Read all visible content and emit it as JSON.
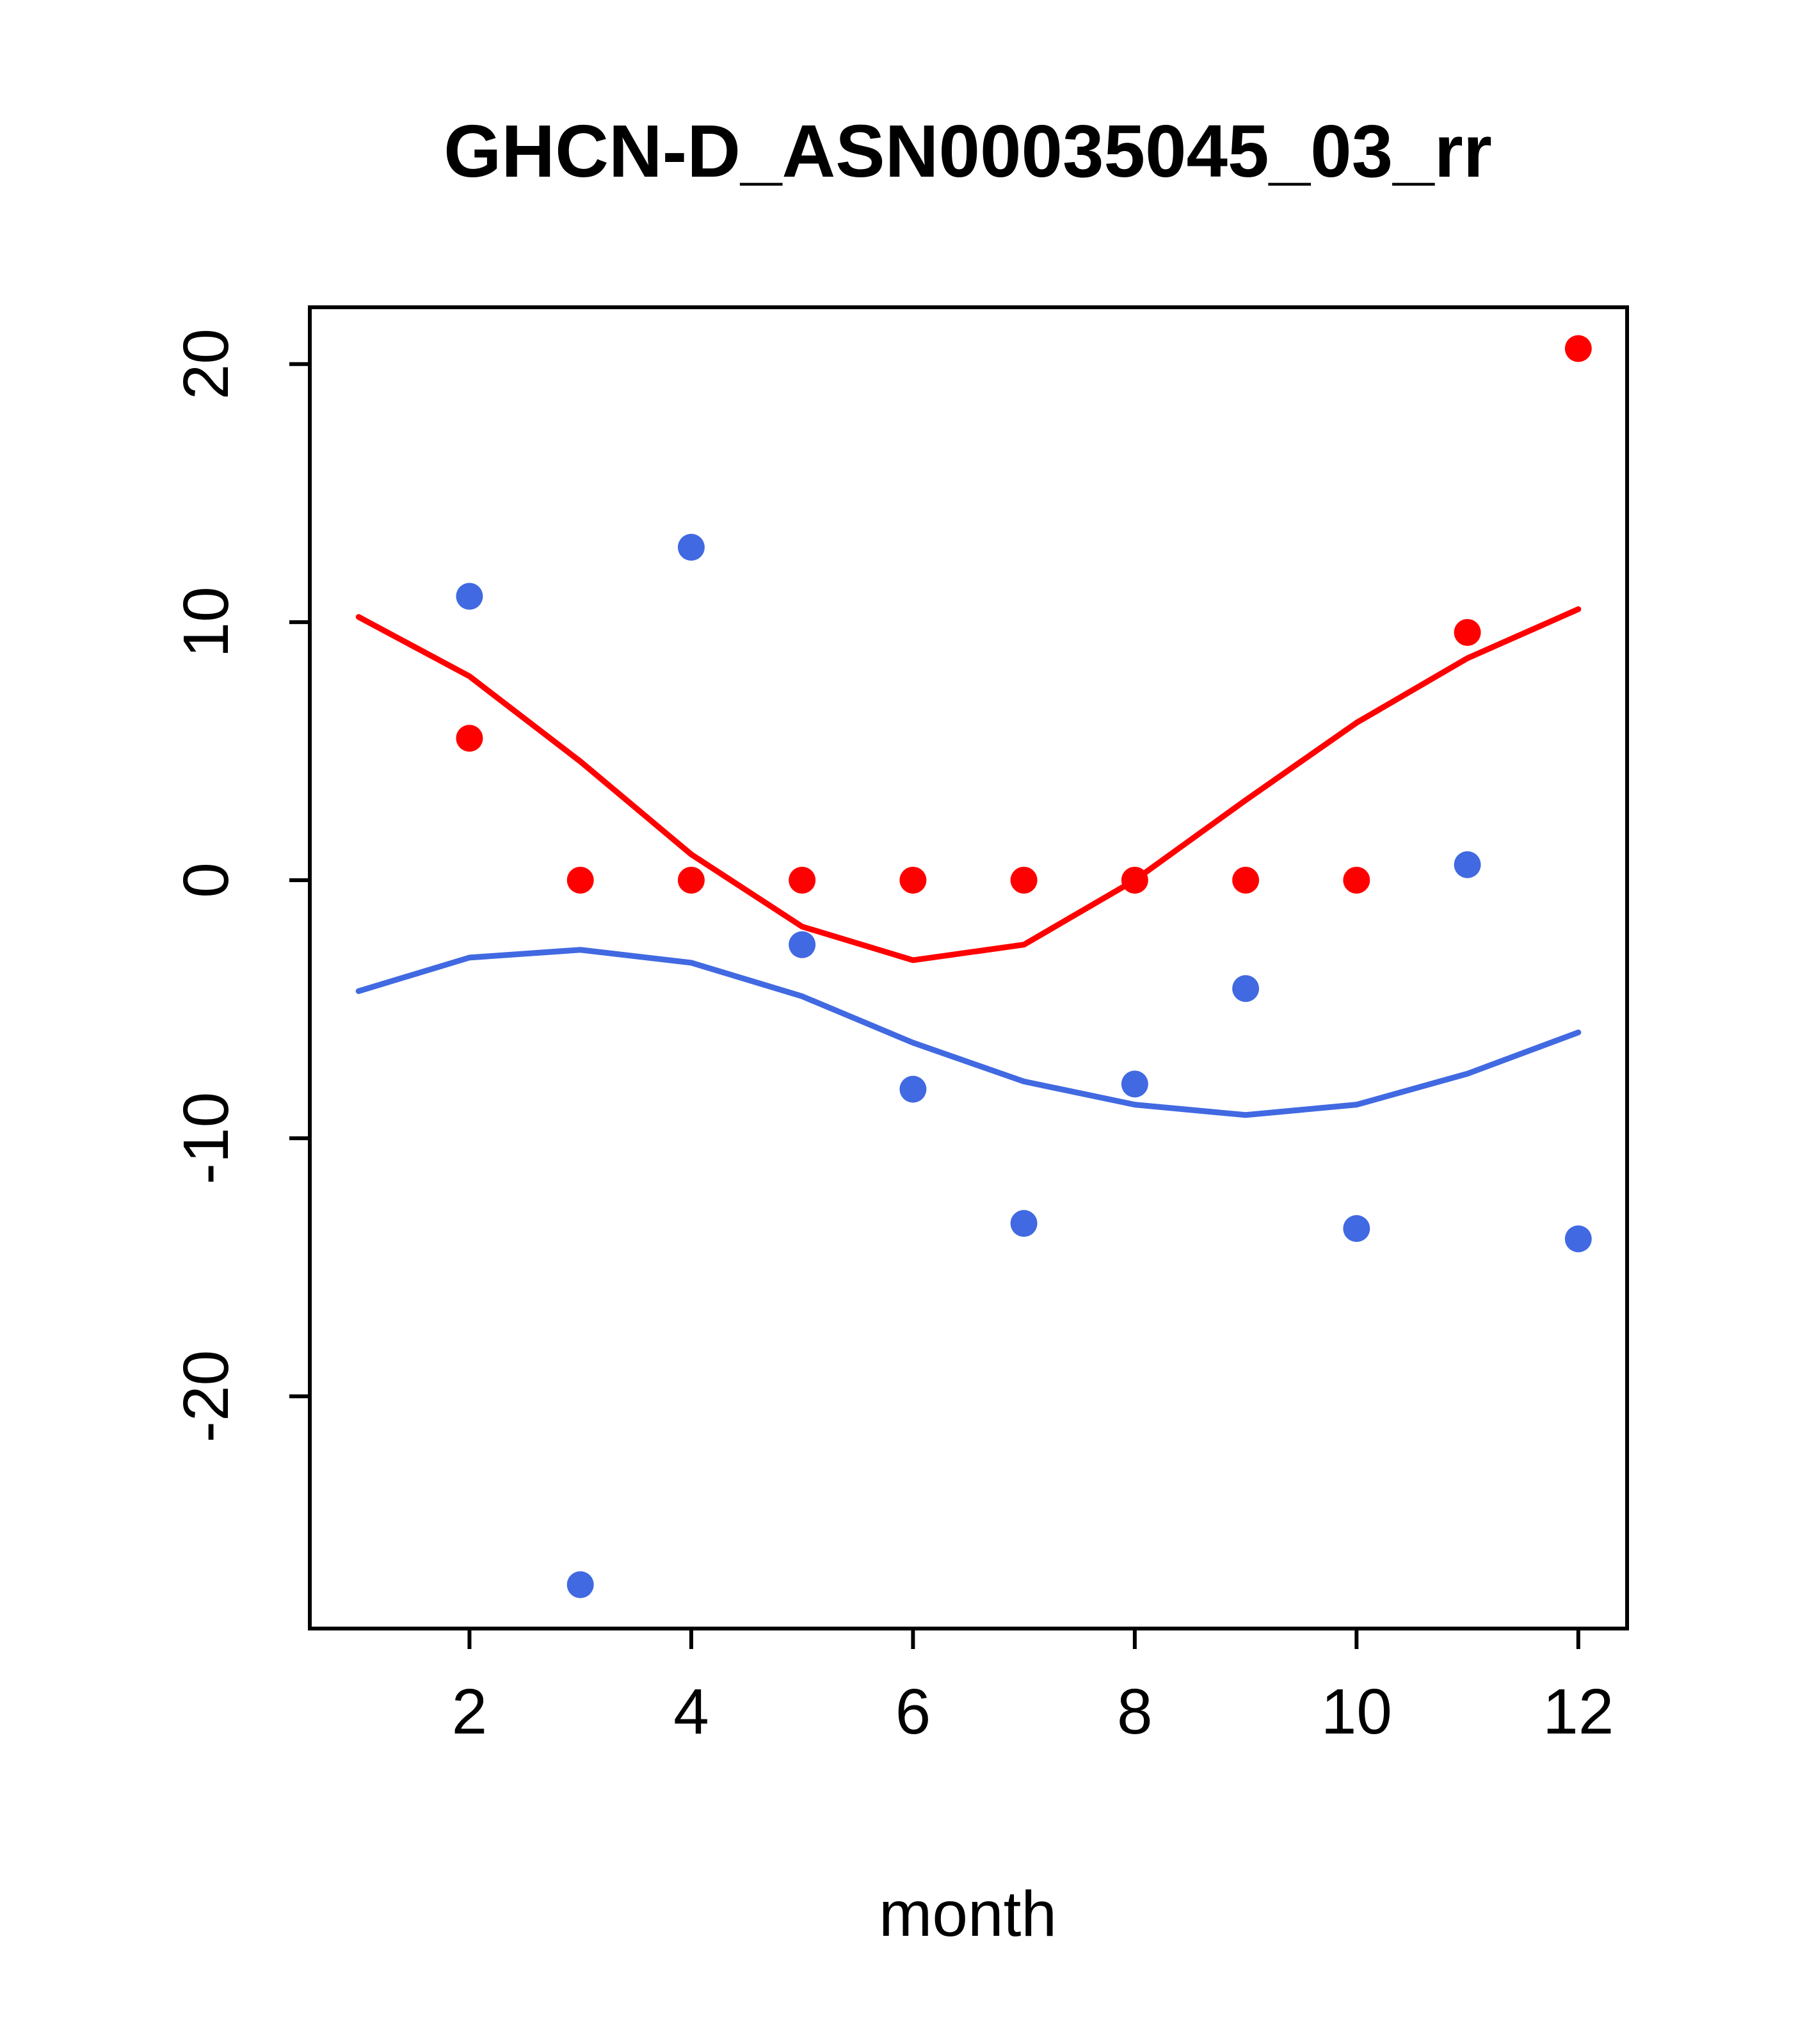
{
  "chart_data": {
    "type": "scatter",
    "title": "GHCN-D_ASN00035045_03_rr",
    "xlabel": "month",
    "ylabel": "",
    "xlim": [
      0.56,
      12.44
    ],
    "ylim": [
      -29.0,
      22.2
    ],
    "xticks": [
      2,
      4,
      6,
      8,
      10,
      12
    ],
    "yticks": [
      -20,
      -10,
      0,
      10,
      20
    ],
    "grid": false,
    "legend": "none",
    "colors": {
      "red": "#ff0000",
      "blue": "#4169e1"
    },
    "series": [
      {
        "name": "red-line",
        "kind": "line",
        "color": "#ff0000",
        "x": [
          1,
          2,
          3,
          4,
          5,
          6,
          7,
          8,
          9,
          10,
          11,
          12
        ],
        "y": [
          10.2,
          7.9,
          4.6,
          1.0,
          -1.8,
          -3.1,
          -2.5,
          0.0,
          3.1,
          6.1,
          8.6,
          10.5
        ]
      },
      {
        "name": "blue-line",
        "kind": "line",
        "color": "#4169e1",
        "x": [
          1,
          2,
          3,
          4,
          5,
          6,
          7,
          8,
          9,
          10,
          11,
          12
        ],
        "y": [
          -4.3,
          -3.0,
          -2.7,
          -3.2,
          -4.5,
          -6.3,
          -7.8,
          -8.7,
          -9.1,
          -8.7,
          -7.5,
          -5.9
        ]
      },
      {
        "name": "red-points",
        "kind": "points",
        "color": "#ff0000",
        "x": [
          2,
          3,
          4,
          5,
          6,
          7,
          8,
          9,
          10,
          11,
          12
        ],
        "y": [
          5.5,
          0,
          0,
          0,
          0,
          0,
          0,
          0,
          0,
          9.6,
          20.6
        ]
      },
      {
        "name": "blue-points",
        "kind": "points",
        "color": "#4169e1",
        "x": [
          2,
          3,
          4,
          5,
          6,
          7,
          8,
          9,
          10,
          11,
          12
        ],
        "y": [
          11.0,
          -27.3,
          12.9,
          -2.5,
          -8.1,
          -13.3,
          -7.9,
          -4.2,
          -13.5,
          0.6,
          -13.9
        ]
      }
    ]
  }
}
